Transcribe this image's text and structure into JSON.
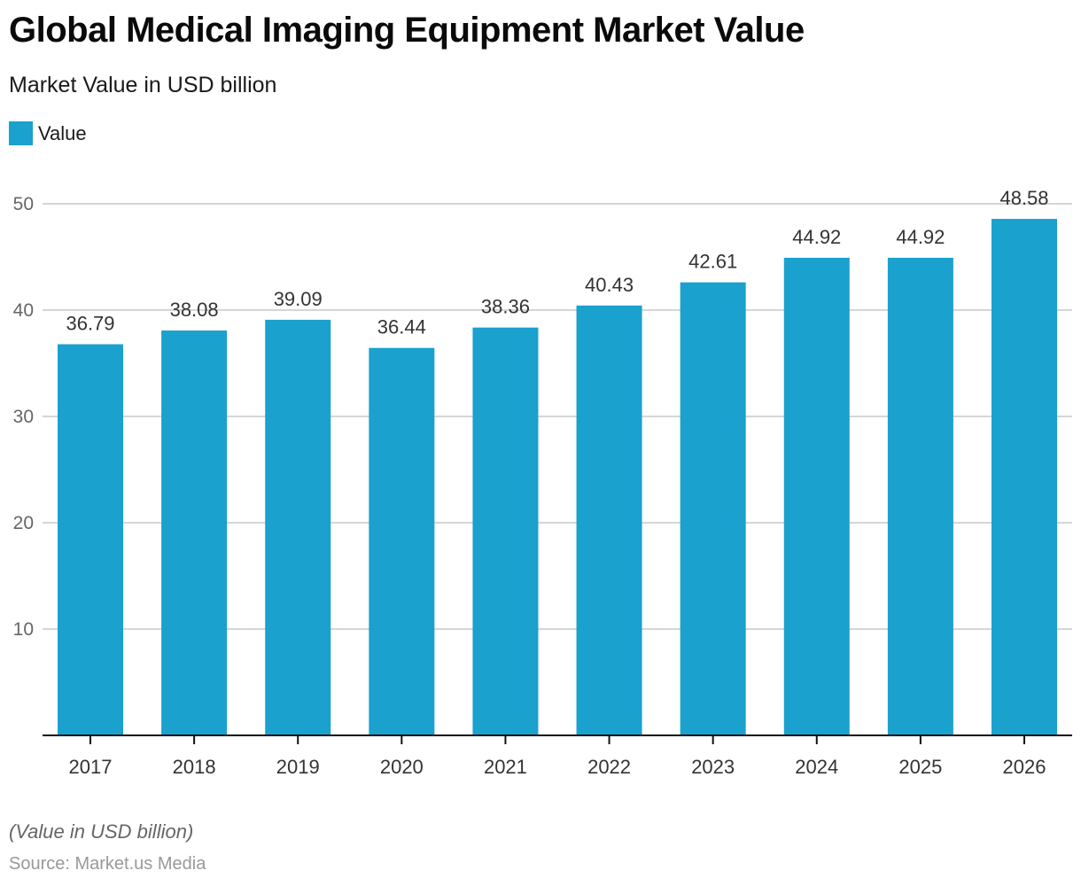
{
  "title": "Global Medical Imaging Equipment Market Value",
  "subtitle": "Market Value in USD billion",
  "legend": {
    "label": "Value",
    "color": "#1aa1cd"
  },
  "note": "(Value in USD billion)",
  "source": "Source: Market.us Media",
  "chart_data": {
    "type": "bar",
    "title": "Global Medical Imaging Equipment Market Value",
    "subtitle": "Market Value in USD billion",
    "xlabel": "",
    "ylabel": "",
    "categories": [
      "2017",
      "2018",
      "2019",
      "2020",
      "2021",
      "2022",
      "2023",
      "2024",
      "2025",
      "2026"
    ],
    "series": [
      {
        "name": "Value",
        "color": "#1aa1cd",
        "values": [
          36.79,
          38.08,
          39.09,
          36.44,
          38.36,
          40.43,
          42.61,
          44.92,
          44.92,
          48.58
        ]
      }
    ],
    "data_labels": [
      "36.79",
      "38.08",
      "39.09",
      "36.44",
      "38.36",
      "40.43",
      "42.61",
      "44.92",
      "44.92",
      "48.58"
    ],
    "ylim": [
      0,
      50
    ],
    "yticks": [
      10,
      20,
      30,
      40,
      50
    ],
    "grid": true,
    "legend_position": "top-left"
  }
}
